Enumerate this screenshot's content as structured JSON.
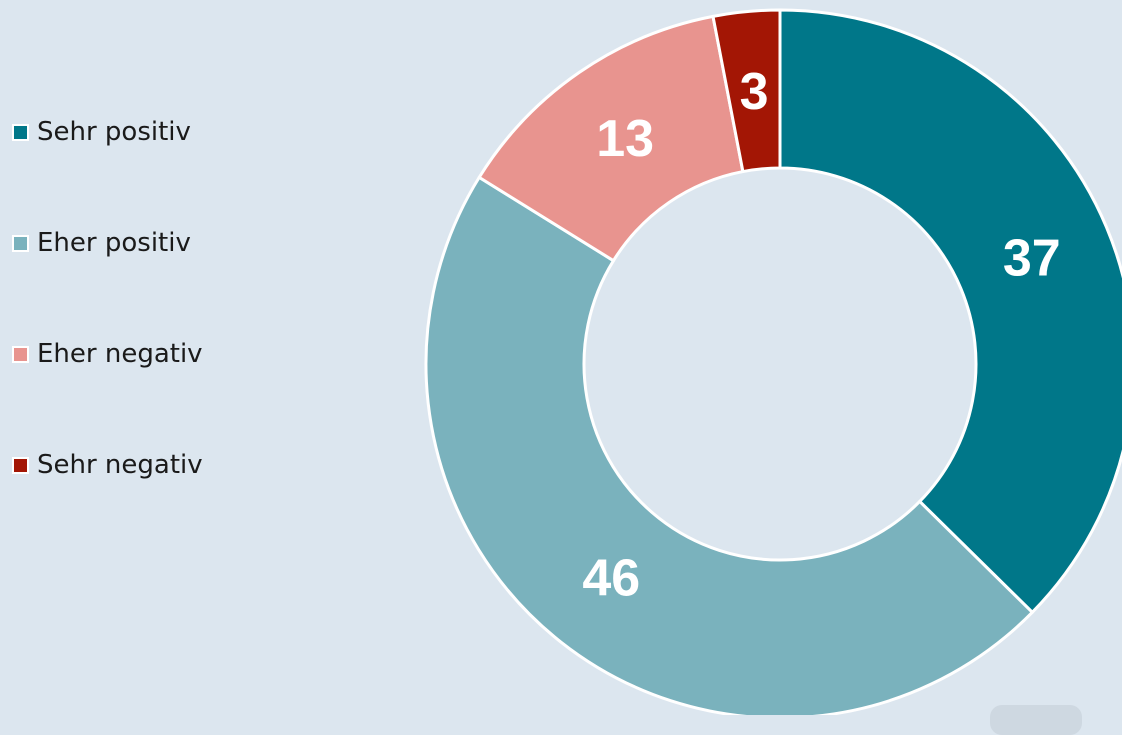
{
  "chart_data": {
    "type": "pie",
    "categories": [
      "Sehr positiv",
      "Eher positiv",
      "Eher negativ",
      "Sehr negativ"
    ],
    "values": [
      37,
      46,
      13,
      3
    ],
    "labels": [
      "37",
      "46",
      "13",
      "3"
    ],
    "colors": [
      "#007789",
      "#7ab2bd",
      "#e8948f",
      "#a31605"
    ],
    "title": "",
    "legend_position": "left",
    "donut": true
  }
}
